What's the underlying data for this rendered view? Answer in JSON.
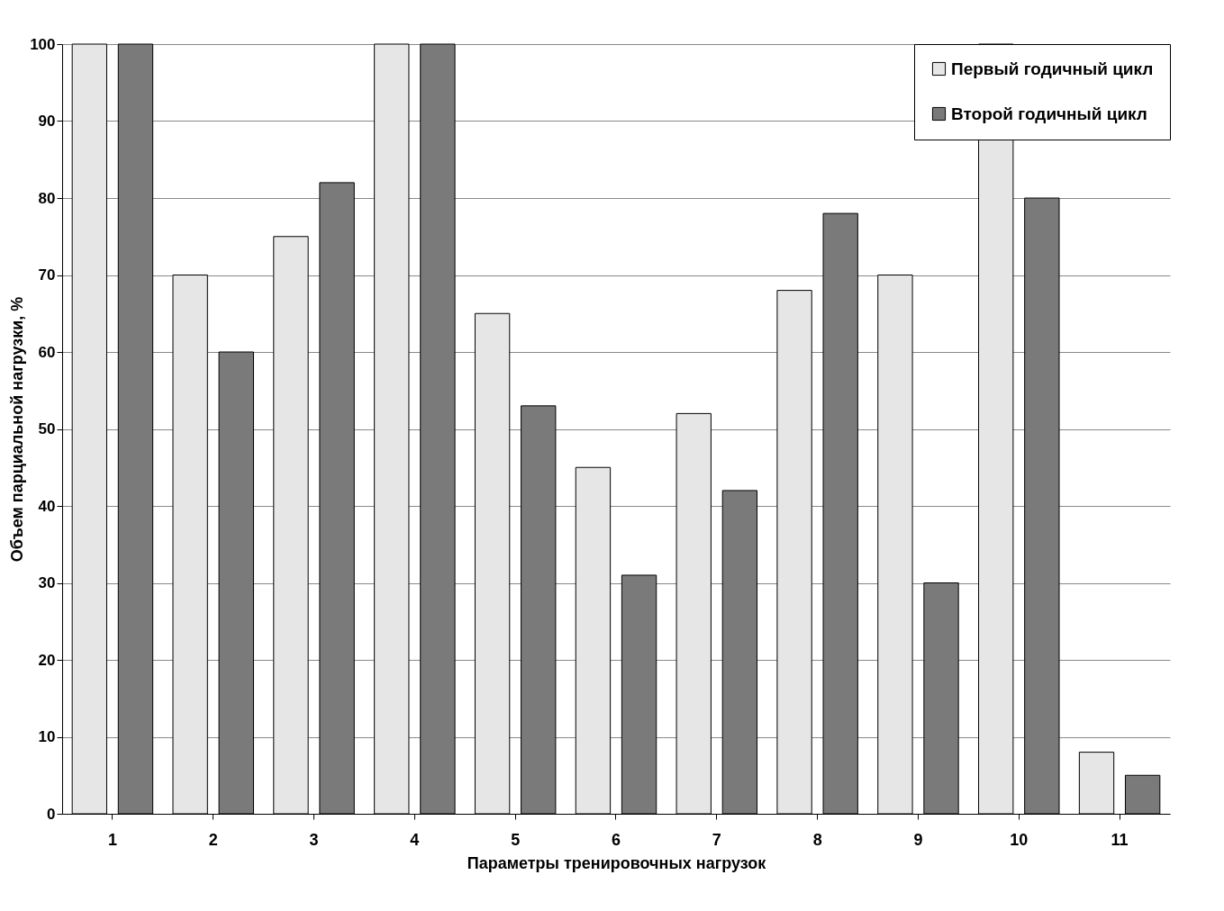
{
  "chart_data": {
    "type": "bar",
    "xlabel": "Параметры тренировочных нагрузок",
    "ylabel": "Объем парциальной нагрузки, %",
    "categories": [
      "1",
      "2",
      "3",
      "4",
      "5",
      "6",
      "7",
      "8",
      "9",
      "10",
      "11"
    ],
    "series": [
      {
        "name": "Первый годичный цикл",
        "color": "#e6e6e6",
        "values": [
          100,
          70,
          75,
          100,
          65,
          45,
          52,
          68,
          70,
          100,
          8
        ]
      },
      {
        "name": "Второй годичный цикл",
        "color": "#7a7a7a",
        "values": [
          100,
          60,
          82,
          100,
          53,
          31,
          42,
          78,
          30,
          80,
          5
        ]
      }
    ],
    "ylim": [
      0,
      100
    ],
    "yticks": [
      0,
      10,
      20,
      30,
      40,
      50,
      60,
      70,
      80,
      90,
      100
    ],
    "grid": "y",
    "legend": "top right"
  }
}
